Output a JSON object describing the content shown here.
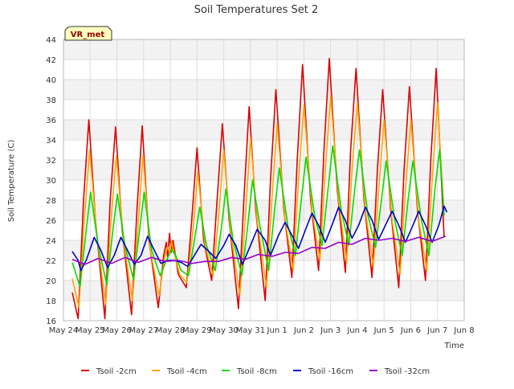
{
  "chart_data": {
    "type": "line",
    "title": "Soil Temperatures Set 2",
    "xlabel": "Time",
    "ylabel": "Soil Temperature (C)",
    "ylim": [
      16,
      44
    ],
    "yticks": [
      16,
      18,
      20,
      22,
      24,
      26,
      28,
      30,
      32,
      34,
      36,
      38,
      40,
      42,
      44
    ],
    "xlim": [
      0,
      15
    ],
    "xticks": [
      {
        "label": "May 24",
        "x": 0
      },
      {
        "label": "May 25",
        "x": 1
      },
      {
        "label": "May 26",
        "x": 2
      },
      {
        "label": "May 27",
        "x": 3
      },
      {
        "label": "May 28",
        "x": 4
      },
      {
        "label": "May 29",
        "x": 5
      },
      {
        "label": "May 30",
        "x": 6
      },
      {
        "label": "May 31",
        "x": 7
      },
      {
        "label": "Jun 1",
        "x": 8
      },
      {
        "label": "Jun 2",
        "x": 9
      },
      {
        "label": "Jun 3",
        "x": 10
      },
      {
        "label": "Jun 4",
        "x": 11
      },
      {
        "label": "Jun 5",
        "x": 12
      },
      {
        "label": "Jun 6",
        "x": 13
      },
      {
        "label": "Jun 7",
        "x": 14
      },
      {
        "label": "Jun 8",
        "x": 15
      }
    ],
    "station_label": "VR_met",
    "grid": true,
    "legend_position": "bottom",
    "series": [
      {
        "name": "Tsoil -2cm",
        "color": "#dd0000",
        "points": [
          [
            0.33,
            18.8
          ],
          [
            0.55,
            16.2
          ],
          [
            0.75,
            28.0
          ],
          [
            0.95,
            36.0
          ],
          [
            1.2,
            26.0
          ],
          [
            1.55,
            16.2
          ],
          [
            1.75,
            28.0
          ],
          [
            1.95,
            35.3
          ],
          [
            2.2,
            25.0
          ],
          [
            2.55,
            16.6
          ],
          [
            2.75,
            27.0
          ],
          [
            2.95,
            35.4
          ],
          [
            3.2,
            24.0
          ],
          [
            3.55,
            17.3
          ],
          [
            3.75,
            22.5
          ],
          [
            3.85,
            23.8
          ],
          [
            3.9,
            22.3
          ],
          [
            3.97,
            24.7
          ],
          [
            4.03,
            22.8
          ],
          [
            4.1,
            24.0
          ],
          [
            4.3,
            20.6
          ],
          [
            4.6,
            19.3
          ],
          [
            4.8,
            26.0
          ],
          [
            5.0,
            33.2
          ],
          [
            5.25,
            24.0
          ],
          [
            5.55,
            20.0
          ],
          [
            5.75,
            28.0
          ],
          [
            5.95,
            35.6
          ],
          [
            6.2,
            26.0
          ],
          [
            6.55,
            17.2
          ],
          [
            6.75,
            28.0
          ],
          [
            6.95,
            37.3
          ],
          [
            7.2,
            27.0
          ],
          [
            7.55,
            18.0
          ],
          [
            7.75,
            30.0
          ],
          [
            7.95,
            39.0
          ],
          [
            8.25,
            27.0
          ],
          [
            8.55,
            20.3
          ],
          [
            8.75,
            32.0
          ],
          [
            8.95,
            41.5
          ],
          [
            9.25,
            28.0
          ],
          [
            9.55,
            21.0
          ],
          [
            9.75,
            33.0
          ],
          [
            9.95,
            42.1
          ],
          [
            10.25,
            29.0
          ],
          [
            10.55,
            20.8
          ],
          [
            10.75,
            33.0
          ],
          [
            10.95,
            41.1
          ],
          [
            11.25,
            28.0
          ],
          [
            11.55,
            20.3
          ],
          [
            11.75,
            31.0
          ],
          [
            11.95,
            39.0
          ],
          [
            12.25,
            27.0
          ],
          [
            12.55,
            19.3
          ],
          [
            12.75,
            31.0
          ],
          [
            12.95,
            39.3
          ],
          [
            13.25,
            27.0
          ],
          [
            13.55,
            20.0
          ],
          [
            13.75,
            32.0
          ],
          [
            13.95,
            41.1
          ],
          [
            14.25,
            24.3
          ]
        ]
      },
      {
        "name": "Tsoil -4cm",
        "color": "#ffa500",
        "points": [
          [
            0.33,
            20.2
          ],
          [
            0.58,
            17.3
          ],
          [
            0.78,
            26.0
          ],
          [
            0.98,
            33.0
          ],
          [
            1.25,
            24.5
          ],
          [
            1.58,
            17.6
          ],
          [
            1.78,
            26.0
          ],
          [
            1.98,
            32.4
          ],
          [
            2.25,
            24.0
          ],
          [
            2.58,
            18.0
          ],
          [
            2.78,
            25.0
          ],
          [
            2.98,
            32.5
          ],
          [
            3.25,
            23.0
          ],
          [
            3.58,
            18.5
          ],
          [
            3.8,
            22.5
          ],
          [
            3.9,
            23.4
          ],
          [
            3.97,
            22.8
          ],
          [
            4.05,
            23.9
          ],
          [
            4.12,
            23.0
          ],
          [
            4.35,
            20.6
          ],
          [
            4.62,
            19.8
          ],
          [
            4.85,
            25.0
          ],
          [
            5.03,
            30.8
          ],
          [
            5.3,
            23.5
          ],
          [
            5.6,
            20.5
          ],
          [
            5.8,
            26.0
          ],
          [
            6.0,
            33.0
          ],
          [
            6.25,
            25.0
          ],
          [
            6.6,
            18.5
          ],
          [
            6.8,
            26.0
          ],
          [
            7.0,
            34.2
          ],
          [
            7.25,
            26.0
          ],
          [
            7.6,
            19.3
          ],
          [
            7.8,
            28.0
          ],
          [
            8.0,
            35.6
          ],
          [
            8.3,
            26.0
          ],
          [
            8.6,
            21.0
          ],
          [
            8.8,
            30.0
          ],
          [
            9.0,
            37.5
          ],
          [
            9.3,
            27.0
          ],
          [
            9.6,
            22.0
          ],
          [
            9.8,
            31.0
          ],
          [
            10.0,
            38.4
          ],
          [
            10.3,
            28.0
          ],
          [
            10.6,
            21.8
          ],
          [
            10.8,
            31.0
          ],
          [
            11.0,
            37.7
          ],
          [
            11.3,
            27.0
          ],
          [
            11.6,
            21.4
          ],
          [
            11.8,
            29.0
          ],
          [
            12.0,
            36.0
          ],
          [
            12.3,
            26.0
          ],
          [
            12.6,
            20.6
          ],
          [
            12.8,
            29.0
          ],
          [
            13.0,
            36.0
          ],
          [
            13.3,
            26.0
          ],
          [
            13.6,
            21.0
          ],
          [
            13.8,
            30.0
          ],
          [
            14.0,
            37.7
          ],
          [
            14.25,
            26.5
          ]
        ]
      },
      {
        "name": "Tsoil -8cm",
        "color": "#00dd00",
        "points": [
          [
            0.33,
            21.8
          ],
          [
            0.62,
            19.4
          ],
          [
            0.85,
            25.0
          ],
          [
            1.02,
            28.8
          ],
          [
            1.3,
            23.5
          ],
          [
            1.62,
            19.6
          ],
          [
            1.85,
            25.0
          ],
          [
            2.02,
            28.6
          ],
          [
            2.3,
            23.5
          ],
          [
            2.62,
            20.1
          ],
          [
            2.85,
            25.0
          ],
          [
            3.02,
            28.8
          ],
          [
            3.3,
            23.0
          ],
          [
            3.62,
            20.5
          ],
          [
            3.85,
            22.0
          ],
          [
            4.05,
            23.1
          ],
          [
            4.2,
            22.5
          ],
          [
            4.4,
            21.0
          ],
          [
            4.68,
            20.5
          ],
          [
            4.9,
            24.0
          ],
          [
            5.1,
            27.3
          ],
          [
            5.35,
            23.5
          ],
          [
            5.68,
            21.0
          ],
          [
            5.9,
            25.0
          ],
          [
            6.08,
            29.1
          ],
          [
            6.35,
            24.0
          ],
          [
            6.68,
            20.5
          ],
          [
            6.9,
            25.5
          ],
          [
            7.08,
            30.0
          ],
          [
            7.35,
            25.5
          ],
          [
            7.68,
            21.0
          ],
          [
            7.9,
            27.0
          ],
          [
            8.08,
            31.2
          ],
          [
            8.4,
            25.5
          ],
          [
            8.68,
            22.5
          ],
          [
            8.9,
            28.0
          ],
          [
            9.08,
            32.3
          ],
          [
            9.4,
            26.5
          ],
          [
            9.68,
            23.5
          ],
          [
            9.9,
            29.0
          ],
          [
            10.08,
            33.4
          ],
          [
            10.4,
            27.0
          ],
          [
            10.68,
            23.5
          ],
          [
            10.9,
            29.0
          ],
          [
            11.08,
            33.0
          ],
          [
            11.4,
            26.5
          ],
          [
            11.68,
            23.3
          ],
          [
            11.9,
            28.0
          ],
          [
            12.08,
            31.9
          ],
          [
            12.4,
            26.0
          ],
          [
            12.68,
            22.5
          ],
          [
            12.9,
            28.0
          ],
          [
            13.08,
            31.9
          ],
          [
            13.4,
            26.0
          ],
          [
            13.68,
            22.5
          ],
          [
            13.9,
            29.0
          ],
          [
            14.08,
            33.0
          ],
          [
            14.25,
            26.5
          ]
        ]
      },
      {
        "name": "Tsoil -16cm",
        "color": "#0000cc",
        "points": [
          [
            0.33,
            22.9
          ],
          [
            0.55,
            22.0
          ],
          [
            0.65,
            21.0
          ],
          [
            0.85,
            22.0
          ],
          [
            1.15,
            24.3
          ],
          [
            1.4,
            23.0
          ],
          [
            1.65,
            21.3
          ],
          [
            1.9,
            22.5
          ],
          [
            2.15,
            24.3
          ],
          [
            2.4,
            23.0
          ],
          [
            2.65,
            21.6
          ],
          [
            2.9,
            22.5
          ],
          [
            3.15,
            24.4
          ],
          [
            3.4,
            23.0
          ],
          [
            3.65,
            21.7
          ],
          [
            3.9,
            22.0
          ],
          [
            4.15,
            22.0
          ],
          [
            4.4,
            21.8
          ],
          [
            4.65,
            21.4
          ],
          [
            4.9,
            22.5
          ],
          [
            5.15,
            23.6
          ],
          [
            5.4,
            23.0
          ],
          [
            5.7,
            22.2
          ],
          [
            6.0,
            23.5
          ],
          [
            6.2,
            24.6
          ],
          [
            6.45,
            23.5
          ],
          [
            6.7,
            21.6
          ],
          [
            7.0,
            23.5
          ],
          [
            7.25,
            25.1
          ],
          [
            7.55,
            24.0
          ],
          [
            7.75,
            22.5
          ],
          [
            8.05,
            24.5
          ],
          [
            8.3,
            25.8
          ],
          [
            8.55,
            24.5
          ],
          [
            8.8,
            23.2
          ],
          [
            9.05,
            25.0
          ],
          [
            9.3,
            26.7
          ],
          [
            9.55,
            25.5
          ],
          [
            9.8,
            23.8
          ],
          [
            10.05,
            25.5
          ],
          [
            10.3,
            27.3
          ],
          [
            10.55,
            26.0
          ],
          [
            10.8,
            24.2
          ],
          [
            11.05,
            25.5
          ],
          [
            11.3,
            27.3
          ],
          [
            11.55,
            26.0
          ],
          [
            11.8,
            24.1
          ],
          [
            12.05,
            25.5
          ],
          [
            12.3,
            26.9
          ],
          [
            12.55,
            25.5
          ],
          [
            12.8,
            23.8
          ],
          [
            13.05,
            25.3
          ],
          [
            13.3,
            26.9
          ],
          [
            13.55,
            25.5
          ],
          [
            13.8,
            23.8
          ],
          [
            14.05,
            25.5
          ],
          [
            14.25,
            27.4
          ],
          [
            14.35,
            26.8
          ]
        ]
      },
      {
        "name": "Tsoil -32cm",
        "color": "#9900cc",
        "points": [
          [
            0.33,
            22.1
          ],
          [
            0.8,
            21.6
          ],
          [
            1.3,
            22.2
          ],
          [
            1.8,
            21.7
          ],
          [
            2.3,
            22.3
          ],
          [
            2.8,
            21.8
          ],
          [
            3.3,
            22.3
          ],
          [
            3.8,
            21.9
          ],
          [
            4.3,
            22.0
          ],
          [
            4.8,
            21.7
          ],
          [
            5.3,
            21.9
          ],
          [
            5.8,
            21.9
          ],
          [
            6.3,
            22.3
          ],
          [
            6.8,
            22.1
          ],
          [
            7.3,
            22.6
          ],
          [
            7.8,
            22.4
          ],
          [
            8.3,
            22.8
          ],
          [
            8.8,
            22.7
          ],
          [
            9.3,
            23.3
          ],
          [
            9.8,
            23.2
          ],
          [
            10.3,
            23.8
          ],
          [
            10.8,
            23.6
          ],
          [
            11.3,
            24.2
          ],
          [
            11.8,
            24.0
          ],
          [
            12.3,
            24.2
          ],
          [
            12.8,
            23.9
          ],
          [
            13.3,
            24.3
          ],
          [
            13.8,
            23.9
          ],
          [
            14.3,
            24.4
          ]
        ]
      }
    ]
  }
}
